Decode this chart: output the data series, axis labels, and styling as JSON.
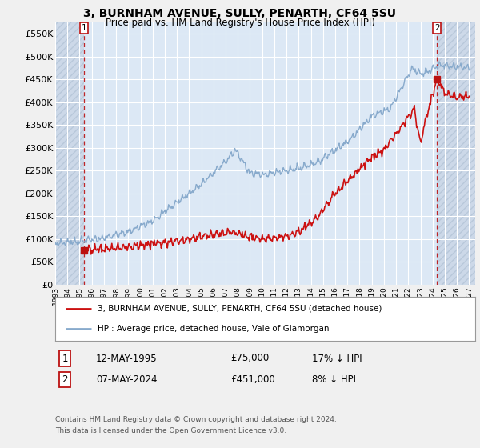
{
  "title": "3, BURNHAM AVENUE, SULLY, PENARTH, CF64 5SU",
  "subtitle": "Price paid vs. HM Land Registry's House Price Index (HPI)",
  "fig_facecolor": "#f0f0f0",
  "plot_facecolor": "#dce8f5",
  "hatch_facecolor": "#ccd8e8",
  "hatch_edgecolor": "#b8c8da",
  "grid_color": "#ffffff",
  "red_line_color": "#cc1111",
  "blue_line_color": "#88aacc",
  "marker_color": "#bb1111",
  "ylim_min": 0,
  "ylim_max": 575000,
  "xlim_min": 1993.0,
  "xlim_max": 2027.5,
  "yticks": [
    0,
    50000,
    100000,
    150000,
    200000,
    250000,
    300000,
    350000,
    400000,
    450000,
    500000,
    550000
  ],
  "ytick_labels": [
    "£0",
    "£50K",
    "£100K",
    "£150K",
    "£200K",
    "£250K",
    "£300K",
    "£350K",
    "£400K",
    "£450K",
    "£500K",
    "£550K"
  ],
  "xticks": [
    1993,
    1994,
    1995,
    1996,
    1997,
    1998,
    1999,
    2000,
    2001,
    2002,
    2003,
    2004,
    2005,
    2006,
    2007,
    2008,
    2009,
    2010,
    2011,
    2012,
    2013,
    2014,
    2015,
    2016,
    2017,
    2018,
    2019,
    2020,
    2021,
    2022,
    2023,
    2024,
    2025,
    2026,
    2027
  ],
  "sale1_x": 1995.37,
  "sale1_y": 75000,
  "sale2_x": 2024.35,
  "sale2_y": 451000,
  "legend1_label": "3, BURNHAM AVENUE, SULLY, PENARTH, CF64 5SU (detached house)",
  "legend2_label": "HPI: Average price, detached house, Vale of Glamorgan",
  "row1_num": "1",
  "row1_date": "12-MAY-1995",
  "row1_price": "£75,000",
  "row1_hpi": "17% ↓ HPI",
  "row2_num": "2",
  "row2_date": "07-MAY-2024",
  "row2_price": "£451,000",
  "row2_hpi": "8% ↓ HPI",
  "footnote1": "Contains HM Land Registry data © Crown copyright and database right 2024.",
  "footnote2": "This data is licensed under the Open Government Licence v3.0."
}
